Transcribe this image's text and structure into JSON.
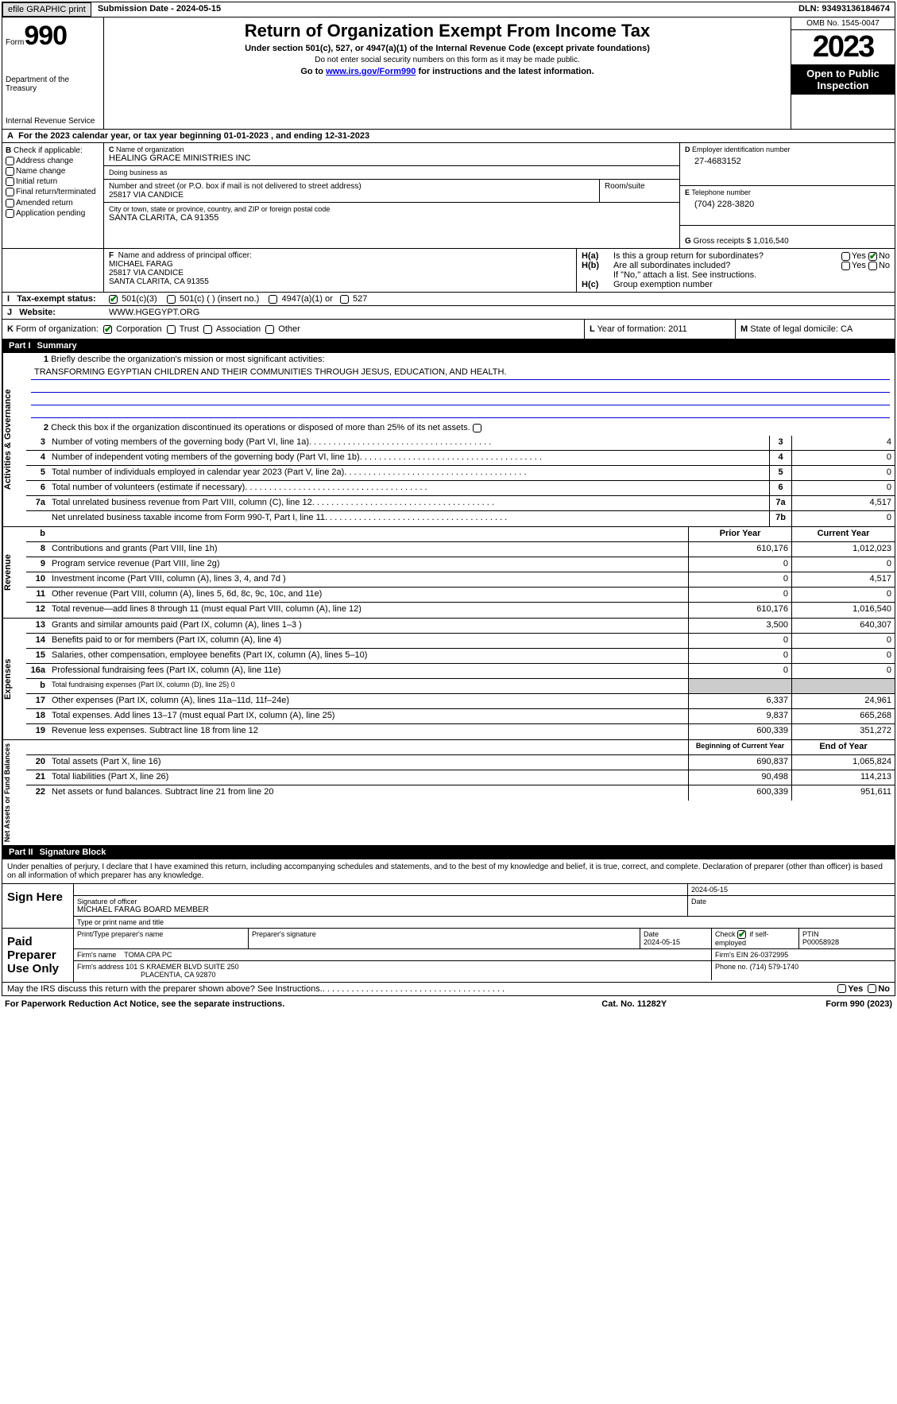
{
  "top": {
    "efile": "efile GRAPHIC print",
    "submission_label": "Submission Date - ",
    "submission_date": "2024-05-15",
    "dln_label": "DLN: ",
    "dln": "93493136184674"
  },
  "header": {
    "form_word": "Form",
    "form_no": "990",
    "dept1": "Department of the Treasury",
    "dept2": "Internal Revenue Service",
    "title": "Return of Organization Exempt From Income Tax",
    "sub1": "Under section 501(c), 527, or 4947(a)(1) of the Internal Revenue Code (except private foundations)",
    "sub2": "Do not enter social security numbers on this form as it may be made public.",
    "link_pre": "Go to ",
    "link_url": "www.irs.gov/Form990",
    "link_post": " for instructions and the latest information.",
    "omb": "OMB No. 1545-0047",
    "year": "2023",
    "inspection": "Open to Public Inspection"
  },
  "row_a": {
    "text": "For the 2023 calendar year, or tax year beginning 01-01-2023    , and ending 12-31-2023"
  },
  "b": {
    "hdr": "Check if applicable:",
    "items": [
      "Address change",
      "Name change",
      "Initial return",
      "Final return/terminated",
      "Amended return",
      "Application pending"
    ]
  },
  "c": {
    "name_lbl": "Name of organization",
    "name": "HEALING GRACE MINISTRIES INC",
    "dba_lbl": "Doing business as",
    "dba": "",
    "street_lbl": "Number and street (or P.O. box if mail is not delivered to street address)",
    "street": "25817 VIA CANDICE",
    "room_lbl": "Room/suite",
    "city_lbl": "City or town, state or province, country, and ZIP or foreign postal code",
    "city": "SANTA CLARITA, CA   91355"
  },
  "d": {
    "lbl": "Employer identification number",
    "val": "27-4683152"
  },
  "e": {
    "lbl": "Telephone number",
    "val": "(704) 228-3820"
  },
  "g": {
    "lbl": "Gross receipts $",
    "val": "1,016,540"
  },
  "f": {
    "lbl": "Name and address of principal officer:",
    "name": "MICHAEL FARAG",
    "street": "25817 VIA CANDICE",
    "city": "SANTA CLARITA, CA  91355"
  },
  "h": {
    "a": "Is this a group return for subordinates?",
    "b": "Are all subordinates included?",
    "b_note": "If \"No,\" attach a list. See instructions.",
    "c": "Group exemption number",
    "yes": "Yes",
    "no": "No"
  },
  "i": {
    "lbl": "Tax-exempt status:",
    "opt1": "501(c)(3)",
    "opt2": "501(c) (  ) (insert no.)",
    "opt3": "4947(a)(1) or",
    "opt4": "527"
  },
  "j": {
    "lbl": "Website:",
    "val": "WWW.HGEGYPT.ORG"
  },
  "k": {
    "lbl": "Form of organization:",
    "opts": [
      "Corporation",
      "Trust",
      "Association",
      "Other"
    ]
  },
  "l": {
    "lbl": "Year of formation:",
    "val": "2011"
  },
  "m": {
    "lbl": "State of legal domicile:",
    "val": "CA"
  },
  "part1": {
    "pn": "Part I",
    "pt": "Summary"
  },
  "summary": {
    "line1_lbl": "Briefly describe the organization's mission or most significant activities:",
    "mission": "TRANSFORMING EGYPTIAN CHILDREN AND THEIR COMMUNITIES THROUGH JESUS, EDUCATION, AND HEALTH.",
    "line2": "Check this box       if the organization discontinued its operations or disposed of more than 25% of its net assets.",
    "sidebar1": "Activities & Governance",
    "sidebar2": "Revenue",
    "sidebar3": "Expenses",
    "sidebar4": "Net Assets or Fund Balances",
    "rows_gov": [
      {
        "n": "3",
        "t": "Number of voting members of the governing body (Part VI, line 1a)",
        "box": "3",
        "v": "4"
      },
      {
        "n": "4",
        "t": "Number of independent voting members of the governing body (Part VI, line 1b)",
        "box": "4",
        "v": "0"
      },
      {
        "n": "5",
        "t": "Total number of individuals employed in calendar year 2023 (Part V, line 2a)",
        "box": "5",
        "v": "0"
      },
      {
        "n": "6",
        "t": "Total number of volunteers (estimate if necessary)",
        "box": "6",
        "v": "0"
      },
      {
        "n": "7a",
        "t": "Total unrelated business revenue from Part VIII, column (C), line 12",
        "box": "7a",
        "v": "4,517"
      },
      {
        "n": "",
        "t": "Net unrelated business taxable income from Form 990-T, Part I, line 11",
        "box": "7b",
        "v": "0"
      }
    ],
    "hdr_prior": "Prior Year",
    "hdr_current": "Current Year",
    "rows_rev": [
      {
        "n": "8",
        "t": "Contributions and grants (Part VIII, line 1h)",
        "p": "610,176",
        "c": "1,012,023"
      },
      {
        "n": "9",
        "t": "Program service revenue (Part VIII, line 2g)",
        "p": "0",
        "c": "0"
      },
      {
        "n": "10",
        "t": "Investment income (Part VIII, column (A), lines 3, 4, and 7d )",
        "p": "0",
        "c": "4,517"
      },
      {
        "n": "11",
        "t": "Other revenue (Part VIII, column (A), lines 5, 6d, 8c, 9c, 10c, and 11e)",
        "p": "0",
        "c": "0"
      },
      {
        "n": "12",
        "t": "Total revenue—add lines 8 through 11 (must equal Part VIII, column (A), line 12)",
        "p": "610,176",
        "c": "1,016,540"
      }
    ],
    "rows_exp": [
      {
        "n": "13",
        "t": "Grants and similar amounts paid (Part IX, column (A), lines 1–3 )",
        "p": "3,500",
        "c": "640,307"
      },
      {
        "n": "14",
        "t": "Benefits paid to or for members (Part IX, column (A), line 4)",
        "p": "0",
        "c": "0"
      },
      {
        "n": "15",
        "t": "Salaries, other compensation, employee benefits (Part IX, column (A), lines 5–10)",
        "p": "0",
        "c": "0"
      },
      {
        "n": "16a",
        "t": "Professional fundraising fees (Part IX, column (A), line 11e)",
        "p": "0",
        "c": "0"
      },
      {
        "n": "b",
        "t": "Total fundraising expenses (Part IX, column (D), line 25) 0",
        "p": "",
        "c": "",
        "gray": true,
        "small": true
      },
      {
        "n": "17",
        "t": "Other expenses (Part IX, column (A), lines 11a–11d, 11f–24e)",
        "p": "6,337",
        "c": "24,961"
      },
      {
        "n": "18",
        "t": "Total expenses. Add lines 13–17 (must equal Part IX, column (A), line 25)",
        "p": "9,837",
        "c": "665,268"
      },
      {
        "n": "19",
        "t": "Revenue less expenses. Subtract line 18 from line 12",
        "p": "600,339",
        "c": "351,272"
      }
    ],
    "hdr_boy": "Beginning of Current Year",
    "hdr_eoy": "End of Year",
    "rows_net": [
      {
        "n": "20",
        "t": "Total assets (Part X, line 16)",
        "p": "690,837",
        "c": "1,065,824"
      },
      {
        "n": "21",
        "t": "Total liabilities (Part X, line 26)",
        "p": "90,498",
        "c": "114,213"
      },
      {
        "n": "22",
        "t": "Net assets or fund balances. Subtract line 21 from line 20",
        "p": "600,339",
        "c": "951,611"
      }
    ]
  },
  "part2": {
    "pn": "Part II",
    "pt": "Signature Block"
  },
  "sig_intro": "Under penalties of perjury, I declare that I have examined this return, including accompanying schedules and statements, and to the best of my knowledge and belief, it is true, correct, and complete. Declaration of preparer (other than officer) is based on all information of which preparer has any knowledge.",
  "sign": {
    "here": "Sign Here",
    "sig_lbl": "Signature of officer",
    "officer": "MICHAEL FARAG  BOARD MEMBER",
    "type_lbl": "Type or print name and title",
    "date_lbl": "Date",
    "date": "2024-05-15"
  },
  "paid": {
    "left": "Paid Preparer Use Only",
    "print_lbl": "Print/Type preparer's name",
    "print": "",
    "sig_lbl": "Preparer's signature",
    "date_lbl": "Date",
    "date": "2024-05-15",
    "self_lbl": "if self-employed",
    "check_lbl": "Check",
    "ptin_lbl": "PTIN",
    "ptin": "P00058928",
    "firm_name_lbl": "Firm's name",
    "firm_name": "TOMA CPA PC",
    "firm_ein_lbl": "Firm's EIN",
    "firm_ein": "26-0372995",
    "firm_addr_lbl": "Firm's address",
    "firm_addr1": "101 S KRAEMER BLVD SUITE 250",
    "firm_addr2": "PLACENTIA, CA  92870",
    "phone_lbl": "Phone no.",
    "phone": "(714) 579-1740"
  },
  "discuss": "May the IRS discuss this return with the preparer shown above? See Instructions.",
  "foot": {
    "l": "For Paperwork Reduction Act Notice, see the separate instructions.",
    "m": "Cat. No. 11282Y",
    "r": "Form 990 (2023)"
  },
  "yes": "Yes",
  "no": "No",
  "letters": {
    "A": "A",
    "B": "B",
    "C": "C",
    "D": "D",
    "E": "E",
    "F": "F",
    "G": "G",
    "Ha": "H(a)",
    "Hb": "H(b)",
    "Hc": "H(c)",
    "I": "I",
    "J": "J",
    "K": "K",
    "L": "L",
    "M": "M",
    "b": "b"
  },
  "colors": {
    "blueline": "#0000cc",
    "green": "#0a7a0a",
    "gray": "#cccccc"
  }
}
